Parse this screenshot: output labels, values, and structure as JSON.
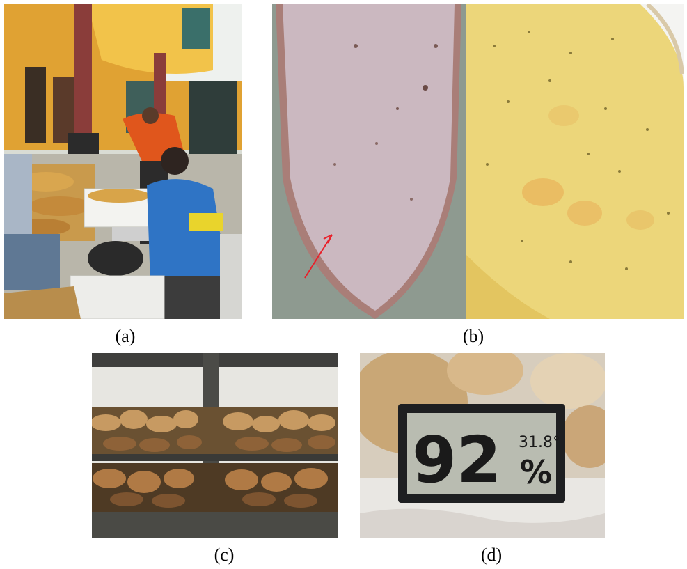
{
  "captions": {
    "a": "(a)",
    "b": "(b)",
    "c": "(c)",
    "d": "(d)"
  },
  "panel_d": {
    "humidity": "92",
    "humidity_unit": "%",
    "temperature": "31.8°"
  },
  "colors": {
    "arrow": "#e8202a",
    "lcd_frame": "#1e1f21",
    "lcd_screen": "#b9bcb1",
    "flesh_purple": "#cbb8c0",
    "flesh_yellow": "#ecd67a"
  }
}
